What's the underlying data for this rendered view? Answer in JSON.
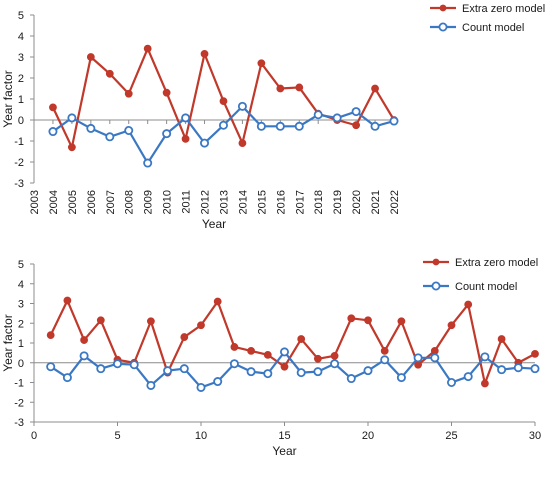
{
  "chart_data": [
    {
      "type": "line",
      "x_type": "category",
      "categories": [
        "2003",
        "2004",
        "2005",
        "2006",
        "2007",
        "2008",
        "2009",
        "2010",
        "2011",
        "2012",
        "2013",
        "2014",
        "2015",
        "2016",
        "2017",
        "2018",
        "2019",
        "2020",
        "2021",
        "2022"
      ],
      "xlabel": "Year",
      "ylabel": "Year factor",
      "ylim": [
        -3,
        5
      ],
      "yticks": [
        -3,
        -2,
        -1,
        0,
        1,
        2,
        3,
        4,
        5
      ],
      "grid": false,
      "legend_position": "top-right",
      "series": [
        {
          "name": "Extra zero model",
          "color": "#c0392b",
          "marker": "filled-circle",
          "values": [
            null,
            0.6,
            -1.3,
            3.0,
            2.2,
            1.25,
            3.4,
            1.3,
            -0.9,
            3.15,
            0.9,
            -1.1,
            2.7,
            1.5,
            1.55,
            0.3,
            0.0,
            -0.25,
            1.5,
            0.0
          ]
        },
        {
          "name": "Count model",
          "color": "#3b78c4",
          "marker": "open-circle",
          "values": [
            null,
            -0.55,
            0.1,
            -0.4,
            -0.8,
            -0.5,
            -2.05,
            -0.65,
            0.1,
            -1.1,
            -0.25,
            0.65,
            -0.3,
            -0.3,
            -0.3,
            0.25,
            0.1,
            0.4,
            -0.3,
            -0.05
          ]
        }
      ]
    },
    {
      "type": "line",
      "x_type": "numeric",
      "x": [
        1,
        2,
        3,
        4,
        5,
        6,
        7,
        8,
        9,
        10,
        11,
        12,
        13,
        14,
        15,
        16,
        17,
        18,
        19,
        20,
        21,
        22,
        23,
        24,
        25,
        26,
        27,
        28,
        29,
        30
      ],
      "xlabel": "Year",
      "ylabel": "Year factor",
      "xlim": [
        0,
        30
      ],
      "xticks": [
        0,
        5,
        10,
        15,
        20,
        25,
        30
      ],
      "ylim": [
        -3,
        5
      ],
      "yticks": [
        -3,
        -2,
        -1,
        0,
        1,
        2,
        3,
        4,
        5
      ],
      "grid": false,
      "legend_position": "top-right",
      "series": [
        {
          "name": "Extra zero model",
          "color": "#c0392b",
          "marker": "filled-circle",
          "values": [
            1.4,
            3.15,
            1.15,
            2.15,
            0.15,
            0.0,
            2.1,
            -0.5,
            1.3,
            1.9,
            3.1,
            0.8,
            0.6,
            0.4,
            -0.2,
            1.2,
            0.2,
            0.35,
            2.25,
            2.15,
            0.6,
            2.1,
            -0.1,
            0.6,
            1.9,
            2.95,
            -1.05,
            1.2,
            0.0,
            0.45
          ]
        },
        {
          "name": "Count model",
          "color": "#3b78c4",
          "marker": "open-circle",
          "values": [
            -0.2,
            -0.75,
            0.35,
            -0.3,
            -0.05,
            -0.1,
            -1.15,
            -0.4,
            -0.3,
            -1.25,
            -0.95,
            -0.05,
            -0.45,
            -0.55,
            0.55,
            -0.5,
            -0.45,
            -0.05,
            -0.8,
            -0.4,
            0.15,
            -0.75,
            0.25,
            0.25,
            -1.0,
            -0.7,
            0.3,
            -0.35,
            -0.25,
            -0.3
          ]
        }
      ]
    }
  ]
}
